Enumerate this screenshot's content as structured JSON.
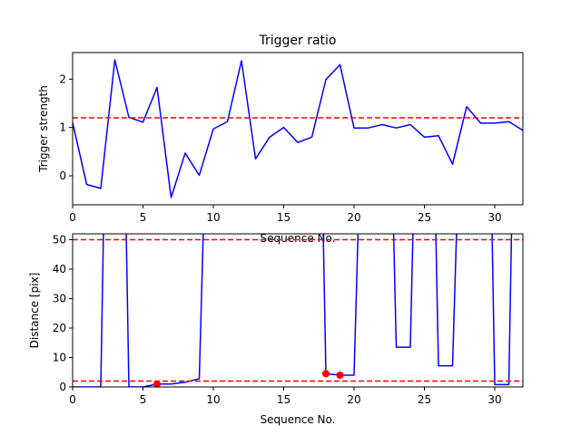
{
  "colors": {
    "series": "#0000ff",
    "threshold": "#ff0000",
    "marker": "#ff0000",
    "axes": "#000000"
  },
  "chart_data": [
    {
      "type": "line",
      "title": "Trigger ratio",
      "xlabel": "Sequence No.",
      "ylabel": "Trigger strength",
      "xlim": [
        0,
        32
      ],
      "ylim": [
        -0.6,
        2.55
      ],
      "xticks": [
        0,
        5,
        10,
        15,
        20,
        25,
        30
      ],
      "yticks": [
        0,
        1,
        2
      ],
      "grid": false,
      "series": [
        {
          "x": [
            0,
            1,
            2,
            3,
            4,
            5,
            6,
            7,
            8,
            9,
            10,
            11,
            12,
            13,
            14,
            15,
            16,
            17,
            18,
            19,
            20,
            21,
            22,
            23,
            24,
            25,
            26,
            27,
            28,
            29,
            30,
            31,
            32
          ],
          "y": [
            1.1,
            -0.18,
            -0.26,
            2.4,
            1.21,
            1.11,
            1.83,
            -0.45,
            0.47,
            0.01,
            0.97,
            1.12,
            2.38,
            0.35,
            0.8,
            1.0,
            0.69,
            0.8,
            1.99,
            2.3,
            0.99,
            0.99,
            1.06,
            0.99,
            1.06,
            0.8,
            0.83,
            0.24,
            1.43,
            1.09,
            1.09,
            1.12,
            0.94
          ]
        }
      ],
      "hlines": [
        1.2
      ]
    },
    {
      "type": "line",
      "title": "",
      "xlabel": "Sequence No.",
      "ylabel": "Distance [pix]",
      "xlim": [
        0,
        32
      ],
      "ylim": [
        0,
        52
      ],
      "xticks": [
        0,
        5,
        10,
        15,
        20,
        25,
        30
      ],
      "yticks": [
        0,
        10,
        20,
        30,
        40,
        50
      ],
      "grid": false,
      "series": [
        {
          "x": [
            0,
            2,
            2.2,
            3.8,
            4,
            5,
            6,
            7,
            8,
            9,
            9.3,
            17.8,
            18,
            19,
            20,
            20.3,
            22.8,
            23,
            24,
            24.2,
            25.8,
            26,
            27,
            27.3,
            29.8,
            30,
            31,
            31.2
          ],
          "y": [
            0,
            0,
            55,
            55,
            0,
            0,
            1,
            1,
            1.6,
            2.8,
            55,
            55,
            4.5,
            4.0,
            4.0,
            55,
            55,
            13.5,
            13.5,
            55,
            55,
            7.2,
            7.2,
            55,
            55,
            0.8,
            0.8,
            55
          ]
        }
      ],
      "markers": {
        "x": [
          6,
          18,
          19
        ],
        "y": [
          1,
          4.5,
          4.0
        ]
      },
      "hlines": [
        50,
        2
      ]
    }
  ]
}
